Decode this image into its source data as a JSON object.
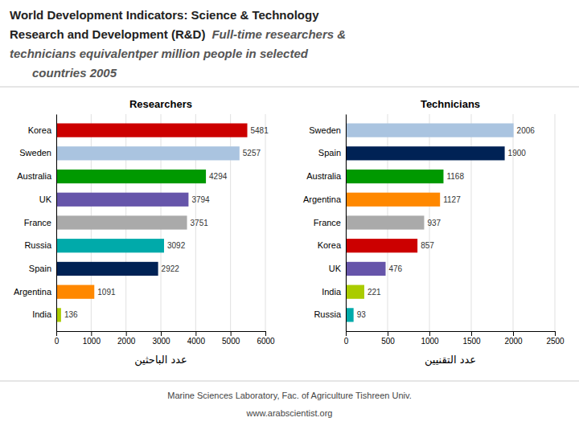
{
  "title": "World Development Indicators: Science & Technology",
  "subtitle": [
    "Research and Development (R&D)",
    "Full-time researchers &",
    "technicians equivalentper million people in selected",
    "countries 2005"
  ],
  "annotations": [
    "Marine Sciences Laboratory, Fac. of Agriculture Tishreen Univ.",
    "www.arabscientist.org"
  ],
  "chart_data": [
    {
      "type": "bar",
      "orientation": "horizontal",
      "title": "Researchers",
      "categories": [
        "Korea",
        "Sweden",
        "Australia",
        "UK",
        "France",
        "Russia",
        "Spain",
        "Argentina",
        "India"
      ],
      "values": [
        5481,
        5257,
        4294,
        3794,
        3751,
        3092,
        2922,
        1091,
        136
      ],
      "colors": [
        "#cc0000",
        "#aac4e0",
        "#009900",
        "#6655aa",
        "#aaaaaa",
        "#00aaaa",
        "#002255",
        "#ff8800",
        "#aacc00"
      ],
      "xlabel": "عدد الباحثين",
      "xlim": [
        0,
        6000
      ],
      "xticks": [
        0,
        1000,
        2000,
        3000,
        4000,
        5000,
        6000
      ],
      "grid": true,
      "data_labels": true
    },
    {
      "type": "bar",
      "orientation": "horizontal",
      "title": "Technicians",
      "categories": [
        "Sweden",
        "Spain",
        "Australia",
        "Argentina",
        "France",
        "Korea",
        "UK",
        "India",
        "Russia"
      ],
      "values": [
        2006,
        1900,
        1168,
        1127,
        937,
        857,
        476,
        221,
        93
      ],
      "colors": [
        "#aac4e0",
        "#002255",
        "#009900",
        "#ff8800",
        "#aaaaaa",
        "#cc0000",
        "#6655aa",
        "#aacc00",
        "#00aaaa"
      ],
      "xlabel": "عدد التقنيين",
      "xlim": [
        0,
        2500
      ],
      "xticks": [
        0,
        500,
        1000,
        1500,
        2000,
        2500
      ],
      "grid": true,
      "data_labels": true
    }
  ]
}
